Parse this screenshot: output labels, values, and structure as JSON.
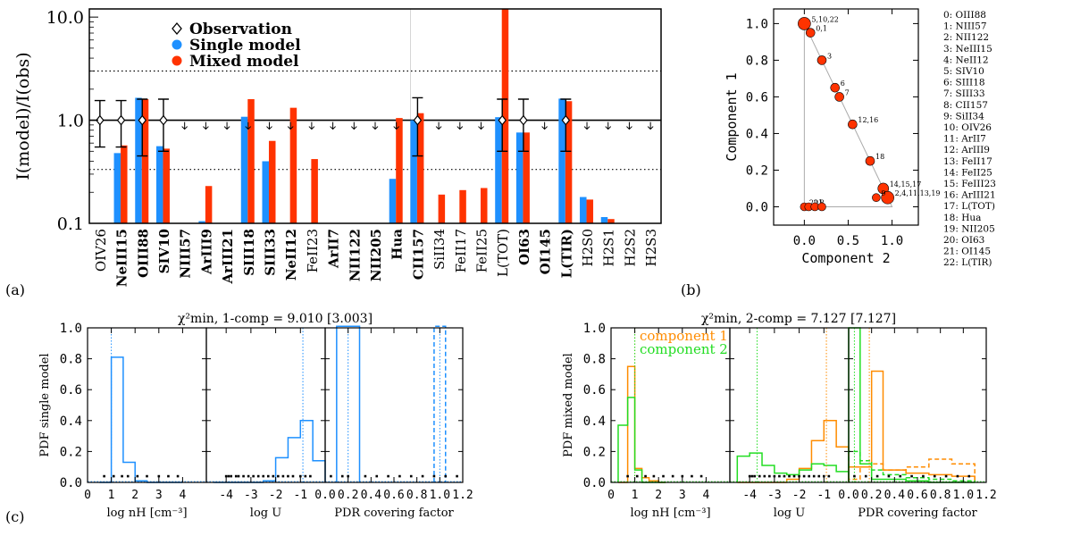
{
  "colors": {
    "single": "#1e90ff",
    "mixed": "#ff3300",
    "comp1": "#ff8c00",
    "comp2": "#22dd22",
    "obs": "#000000"
  },
  "panel_labels": {
    "a": "(a)",
    "b": "(b)",
    "c": "(c)"
  },
  "chart_data": [
    {
      "id": "a",
      "type": "bar",
      "ylabel": "I(model)/I(obs)",
      "yscale": "log",
      "ylim": [
        0.1,
        12
      ],
      "yticks": [
        "0.1",
        "1.0",
        "10.0"
      ],
      "legend": {
        "placement": "top-left",
        "entries": [
          "Observation",
          "Single model",
          "Mixed model"
        ]
      },
      "categories": [
        "OIV26",
        "NeIII15",
        "OIII88",
        "SIV10",
        "NIII57",
        "ArIII9",
        "ArIII21",
        "SIII18",
        "SIII33",
        "NeII12",
        "FeII23",
        "ArII7",
        "NII122",
        "NII205",
        "Hua",
        "CII157",
        "SiII34",
        "FeII17",
        "FeII25",
        "L(TOT)",
        "OI63",
        "OI145",
        "L(TIR)",
        "H2S0",
        "H2S1",
        "H2S2",
        "H2S3"
      ],
      "bold_categories": [
        "NeIII15",
        "OIII88",
        "SIV10",
        "NIII57",
        "ArIII9",
        "ArIII21",
        "SIII18",
        "SIII33",
        "NeII12",
        "ArII7",
        "NII122",
        "NII205",
        "Hua",
        "CII157",
        "OI63",
        "OI145",
        "L(TIR)"
      ],
      "single": [
        null,
        0.48,
        1.65,
        0.56,
        null,
        0.105,
        null,
        1.08,
        0.4,
        null,
        null,
        null,
        null,
        null,
        0.27,
        1.0,
        null,
        null,
        null,
        1.07,
        0.76,
        null,
        1.62,
        0.18,
        0.115,
        null,
        null
      ],
      "mixed": [
        null,
        0.57,
        1.6,
        0.53,
        null,
        0.23,
        null,
        1.6,
        0.63,
        1.32,
        0.42,
        null,
        null,
        null,
        1.05,
        1.17,
        0.19,
        0.21,
        0.22,
        12,
        0.76,
        null,
        1.53,
        0.17,
        0.11,
        null,
        null
      ],
      "observations": [
        {
          "cat": 0,
          "y": 1.0,
          "lo": 0.55,
          "hi": 1.55
        },
        {
          "cat": 1,
          "y": 1.0,
          "lo": 0.55,
          "hi": 1.55
        },
        {
          "cat": 2,
          "y": 1.0,
          "lo": 0.45,
          "hi": 1.6
        },
        {
          "cat": 3,
          "y": 1.0,
          "lo": 0.5,
          "hi": 1.6
        },
        {
          "cat": 15,
          "y": 1.0,
          "lo": 0.45,
          "hi": 1.65
        },
        {
          "cat": 19,
          "y": 1.0,
          "lo": 0.5,
          "hi": 1.6
        },
        {
          "cat": 20,
          "y": 1.0,
          "lo": 0.5,
          "hi": 1.6
        },
        {
          "cat": 22,
          "y": 1.0,
          "lo": 0.5,
          "hi": 1.6
        }
      ],
      "upper_limits": [
        4,
        5,
        6,
        7,
        8,
        9,
        10,
        11,
        12,
        13,
        14,
        16,
        17,
        18,
        21,
        23,
        24,
        25,
        26
      ],
      "hlines": [
        {
          "y": 1.0,
          "style": "solid"
        },
        {
          "y": 3.0,
          "style": "dotted"
        },
        {
          "y": 0.333,
          "style": "dotted"
        }
      ]
    },
    {
      "id": "b",
      "type": "scatter",
      "xlabel": "Component 2",
      "ylabel": "Component 1",
      "xlim": [
        -0.35,
        1.3
      ],
      "ylim": [
        -0.1,
        1.08
      ],
      "xticks": [
        "0.0",
        "0.5",
        "1.0"
      ],
      "yticks": [
        "0.0",
        "0.2",
        "0.4",
        "0.6",
        "0.8",
        "1.0"
      ],
      "points": [
        {
          "x": 0.0,
          "y": 1.0,
          "size": 7,
          "label": "5,10,22"
        },
        {
          "x": 0.07,
          "y": 0.95,
          "size": 5,
          "label": "0,1"
        },
        {
          "x": 0.2,
          "y": 0.8,
          "size": 5,
          "label": "3"
        },
        {
          "x": 0.35,
          "y": 0.65,
          "size": 5,
          "label": "6"
        },
        {
          "x": 0.4,
          "y": 0.6,
          "size": 5,
          "label": "7"
        },
        {
          "x": 0.55,
          "y": 0.45,
          "size": 5,
          "label": "12,16"
        },
        {
          "x": 0.75,
          "y": 0.25,
          "size": 5,
          "label": "18"
        },
        {
          "x": 0.9,
          "y": 0.1,
          "size": 6,
          "label": "14,15,17"
        },
        {
          "x": 0.95,
          "y": 0.05,
          "size": 7,
          "label": "2,4,11,13,19"
        },
        {
          "x": 0.82,
          "y": 0.05,
          "size": 4.5,
          "label": "9"
        },
        {
          "x": 0.0,
          "y": 0.0,
          "size": 4.5,
          "label": "20"
        },
        {
          "x": 0.05,
          "y": 0.0,
          "size": 4.5,
          "label": "21"
        },
        {
          "x": 0.12,
          "y": 0.0,
          "size": 4.5,
          "label": "8"
        },
        {
          "x": 0.2,
          "y": 0.0,
          "size": 4.5,
          "label": ""
        }
      ],
      "legend_list": [
        "0: OIII88",
        "1: NIII57",
        "2: NII122",
        "3: NeIII15",
        "4: NeII12",
        "5: SIV10",
        "6: SIII18",
        "7: SIII33",
        "8: CII157",
        "9: SiII34",
        "10: OIV26",
        "11:  ArII7",
        "12: ArIII9",
        "13: FeII17",
        "14: FeII25",
        "15: FeIII23",
        "16: ArIII21",
        "17: L(TOT)",
        "18:   Hua",
        "19: NII205",
        "20: OI63",
        "21: OI145",
        "22: L(TIR)"
      ]
    },
    {
      "id": "c-single",
      "type": "histogram",
      "title": "χ²min, 1-comp = 9.010 [3.003]",
      "ylabel": "PDF single model",
      "ylim": [
        0,
        1.0
      ],
      "yticks": [
        "0.0",
        "0.2",
        "0.4",
        "0.6",
        "0.8",
        "1.0"
      ],
      "subpanels": [
        {
          "xlabel": "log nH [cm⁻³]",
          "xlim": [
            0,
            5
          ],
          "xticks": [
            "0",
            "1",
            "2",
            "3",
            "4"
          ],
          "bins": [
            0.5,
            1.0,
            1.5,
            2.0,
            2.5,
            3.0,
            3.5,
            4.0
          ],
          "comp_solid": [
            0.0,
            0.81,
            0.13,
            0.01,
            0.0,
            0.0,
            0.0
          ],
          "best": 1.0,
          "dots": [
            0.7,
            1.1,
            1.45,
            1.7,
            2.1,
            2.5,
            3.0,
            3.4,
            3.8
          ]
        },
        {
          "xlabel": "log U",
          "xlim": [
            -4.8,
            0
          ],
          "xticks": [
            "-4",
            "-3",
            "-2",
            "-1"
          ],
          "bins": [
            -4.5,
            -4.0,
            -3.5,
            -3.0,
            -2.5,
            -2.0,
            -1.5,
            -1.0,
            -0.5,
            0.0
          ],
          "comp_solid": [
            0.0,
            0.0,
            0.0,
            0.0,
            0.01,
            0.16,
            0.29,
            0.4,
            0.14
          ],
          "best": -0.9,
          "dots": [
            -4.0,
            -3.9,
            -3.8,
            -3.6,
            -3.5,
            -3.3,
            -3.1,
            -2.9,
            -2.7,
            -2.5,
            -2.3,
            -2.1,
            -1.9,
            -1.7,
            -1.5,
            -1.3,
            -1.0,
            -0.8,
            -0.6
          ]
        },
        {
          "xlabel": "PDR covering factor",
          "xlim": [
            0,
            1.2
          ],
          "xticks": [
            "0.0",
            "0.2",
            "0.4",
            "0.6",
            "0.8",
            "1.0",
            "1.2"
          ],
          "bins": [
            0.1,
            0.3
          ],
          "comp_solid": [
            1.01
          ],
          "dashed_bins": [
            0.95,
            1.05
          ],
          "comp_dashed": [
            1.01
          ],
          "best": 0.2,
          "best2": 1.0,
          "dots": [
            0.05,
            0.15,
            0.2,
            0.35,
            0.45,
            0.55,
            0.65,
            0.75,
            0.85,
            0.95,
            1.05,
            1.15
          ]
        }
      ]
    },
    {
      "id": "c-mixed",
      "type": "histogram",
      "title": "χ²min, 2-comp = 7.127 [7.127]",
      "ylabel": "PDF mixed model",
      "ylim": [
        0,
        1.0
      ],
      "yticks": [
        "0.0",
        "0.2",
        "0.4",
        "0.6",
        "0.8",
        "1.0"
      ],
      "legend": {
        "placement": "top-left",
        "entries": [
          "component 1",
          "component 2"
        ]
      },
      "subpanels": [
        {
          "xlabel": "log nH [cm⁻³]",
          "xlim": [
            0,
            5
          ],
          "xticks": [
            "0",
            "1",
            "2",
            "3",
            "4"
          ],
          "bins": [
            0.3,
            0.7,
            1.0,
            1.3,
            1.6,
            2.0,
            2.3
          ],
          "comp1": [
            0.0,
            0.75,
            0.09,
            0.03,
            0.01,
            0.0
          ],
          "comp2": [
            0.37,
            0.55,
            0.08,
            0.0,
            0.0,
            0.0
          ],
          "best1": 1.0,
          "best2": 1.0,
          "dots": [
            0.7,
            1.1,
            1.45,
            1.8,
            2.2,
            2.6,
            3.0,
            3.4,
            3.8
          ]
        },
        {
          "xlabel": "log U",
          "xlim": [
            -4.8,
            0
          ],
          "xticks": [
            "-4",
            "-3",
            "-2",
            "-1"
          ],
          "bins": [
            -4.5,
            -4.0,
            -3.5,
            -3.0,
            -2.5,
            -2.0,
            -1.5,
            -1.0,
            -0.5,
            0.0
          ],
          "comp1": [
            0.0,
            0.0,
            0.0,
            0.0,
            0.02,
            0.09,
            0.27,
            0.4,
            0.23
          ],
          "comp2": [
            0.17,
            0.19,
            0.11,
            0.06,
            0.05,
            0.08,
            0.12,
            0.11,
            0.07
          ],
          "best1": -0.9,
          "best2": -3.7,
          "dots": [
            -4.0,
            -3.9,
            -3.8,
            -3.6,
            -3.4,
            -3.2,
            -3.0,
            -2.8,
            -2.6,
            -2.4,
            -2.2,
            -2.0,
            -1.8,
            -1.6,
            -1.4,
            -1.2,
            -1.0,
            -0.8
          ]
        },
        {
          "xlabel": "PDR covering factor",
          "xlim": [
            0,
            1.2
          ],
          "xticks": [
            "0.0",
            "0.2",
            "0.4",
            "0.6",
            "0.8",
            "1.0",
            "1.2"
          ],
          "bins": [
            0.0,
            0.1,
            0.2,
            0.3,
            0.5,
            0.7,
            0.9,
            1.1
          ],
          "comp1": [
            0.1,
            0.1,
            0.72,
            0.08,
            0.06,
            0.05,
            0.04
          ],
          "comp2": [
            1.0,
            0.12,
            0.02,
            0.02,
            0.01,
            0.0,
            0.0
          ],
          "comp1_dashed": [
            0.02,
            0.1,
            0.12,
            0.08,
            0.1,
            0.15,
            0.12
          ],
          "comp2_dashed": [
            0.2,
            0.14,
            0.08,
            0.05,
            0.03,
            0.02,
            0.01
          ],
          "best1": 0.18,
          "best2": 0.05,
          "dots": [
            0.05,
            0.15,
            0.25,
            0.35,
            0.45,
            0.55,
            0.65,
            0.75,
            0.85,
            0.95,
            1.05
          ]
        }
      ]
    }
  ]
}
